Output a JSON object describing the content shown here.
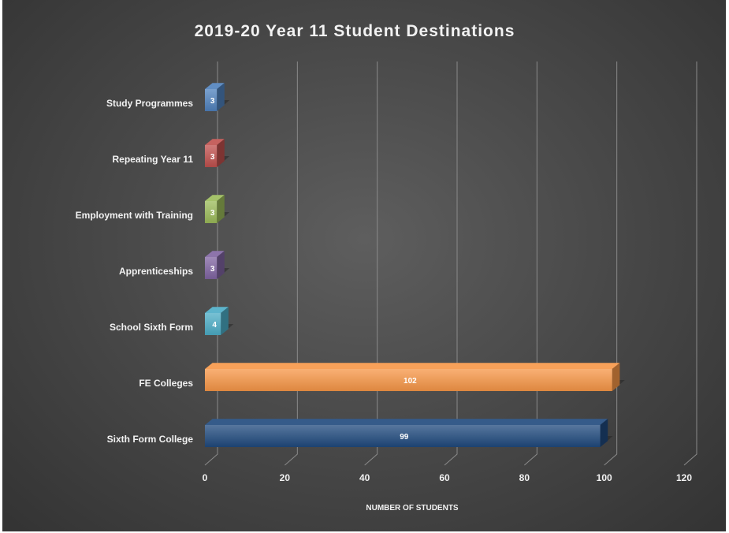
{
  "chart_data": {
    "type": "bar",
    "orientation": "horizontal",
    "title": "2019-20 Year 11 Student Destinations",
    "xlabel": "NUMBER OF STUDENTS",
    "ylabel": "",
    "xlim": [
      0,
      120
    ],
    "x_ticks": [
      "0",
      "20",
      "40",
      "60",
      "80",
      "100",
      "120"
    ],
    "grid": true,
    "legend": "none",
    "categories": [
      "Study Programmes",
      "Repeating Year 11",
      "Employment with Training",
      "Apprenticeships",
      "School Sixth Form",
      "FE Colleges",
      "Sixth Form College"
    ],
    "values": [
      3,
      3,
      3,
      3,
      4,
      102,
      99
    ],
    "colors": [
      "#4f81bd",
      "#c0504d",
      "#9bbb59",
      "#8064a2",
      "#4bacc6",
      "#f79646",
      "#1f497d"
    ]
  }
}
